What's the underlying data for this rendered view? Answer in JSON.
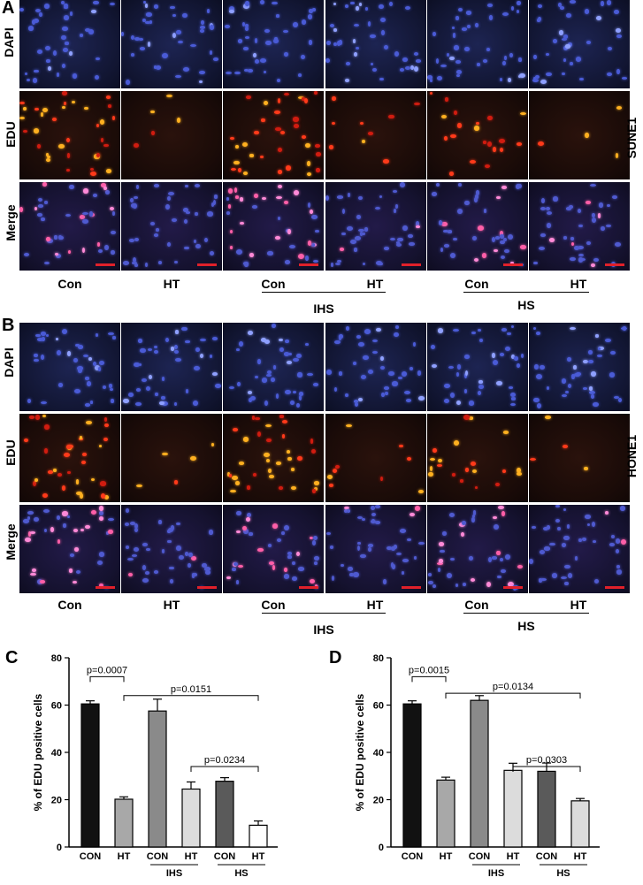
{
  "panel_A": {
    "letter": "A",
    "cell_line": "SUNE1",
    "rows": [
      "DAPI",
      "EDU",
      "Merge"
    ],
    "columns": [
      "Con",
      "HT",
      "Con",
      "HT",
      "Con",
      "HT"
    ],
    "groups": [
      "IHS",
      "HS"
    ]
  },
  "panel_B": {
    "letter": "B",
    "cell_line": "HONE1",
    "rows": [
      "DAPI",
      "EDU",
      "Merge"
    ],
    "columns": [
      "Con",
      "HT",
      "Con",
      "HT",
      "Con",
      "HT"
    ],
    "groups": [
      "IHS",
      "HS"
    ]
  },
  "chart_data": [
    {
      "panel": "C",
      "type": "bar",
      "ylabel": "% of EDU positive cells",
      "ylim": [
        0,
        80
      ],
      "yticks": [
        0,
        20,
        40,
        60,
        80
      ],
      "categories": [
        "CON",
        "HT",
        "CON",
        "HT",
        "CON",
        "HT"
      ],
      "values": [
        60.5,
        20.2,
        57.5,
        24.5,
        27.8,
        9.2
      ],
      "errors": [
        1.3,
        1.0,
        5.0,
        3.0,
        1.5,
        1.8
      ],
      "colors": [
        "#111111",
        "#a8a8a8",
        "#8a8a8a",
        "#dcdcdc",
        "#5a5a5a",
        "#ffffff"
      ],
      "groups": [
        {
          "label": "IHS",
          "from": 2,
          "to": 3
        },
        {
          "label": "HS",
          "from": 4,
          "to": 5
        }
      ],
      "annotations": [
        {
          "text": "p=0.0007",
          "from": 0,
          "to": 1,
          "level": 72
        },
        {
          "text": "p=0.0151",
          "from": 1,
          "to": 5,
          "level": 64
        },
        {
          "text": "p=0.0234",
          "from": 3,
          "to": 5,
          "level": 34
        }
      ]
    },
    {
      "panel": "D",
      "type": "bar",
      "ylabel": "% of EDU positive cells",
      "ylim": [
        0,
        80
      ],
      "yticks": [
        0,
        20,
        40,
        60,
        80
      ],
      "categories": [
        "CON",
        "HT",
        "CON",
        "HT",
        "CON",
        "HT"
      ],
      "values": [
        60.5,
        28.3,
        62.0,
        32.4,
        32.0,
        19.5
      ],
      "errors": [
        1.3,
        1.2,
        2.0,
        3.0,
        3.5,
        1.0
      ],
      "colors": [
        "#111111",
        "#a8a8a8",
        "#8a8a8a",
        "#dcdcdc",
        "#5a5a5a",
        "#dcdcdc"
      ],
      "groups": [
        {
          "label": "IHS",
          "from": 2,
          "to": 3
        },
        {
          "label": "HS",
          "from": 4,
          "to": 5
        }
      ],
      "annotations": [
        {
          "text": "p=0.0015",
          "from": 0,
          "to": 1,
          "level": 72
        },
        {
          "text": "p=0.0134",
          "from": 1,
          "to": 5,
          "level": 65
        },
        {
          "text": "p=0.0303",
          "from": 3,
          "to": 5,
          "level": 34
        }
      ]
    }
  ]
}
